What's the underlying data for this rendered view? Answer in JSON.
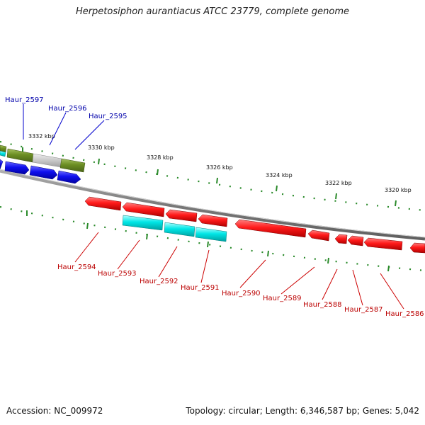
{
  "title": "Herpetosiphon aurantiacus ATCC 23779, complete genome",
  "accession": "Accession: NC_009972",
  "summary": "Topology: circular; Length: 6,346,587 bp; Genes: 5,042",
  "colors": {
    "forward_cds": "#0000ee",
    "reverse_cds": "#ee0000",
    "rna_gene": "#00dddd",
    "olive_feature": "#6b8e23",
    "grey_feature": "#c8c8c8",
    "backbone": "#888888",
    "tick": "#2a8a2a",
    "label_forward": "#0000aa",
    "label_reverse": "#bb0000"
  },
  "scale": {
    "labels": [
      "3332 kbp",
      "3330 kbp",
      "3328 kbp",
      "3326 kbp",
      "3324 kbp",
      "3322 kbp",
      "3320 kbp"
    ]
  },
  "genes_forward": [
    {
      "label": "Haur_2597"
    },
    {
      "label": "Haur_2596"
    },
    {
      "label": "Haur_2595"
    }
  ],
  "genes_reverse": [
    {
      "label": "Haur_2594"
    },
    {
      "label": "Haur_2593"
    },
    {
      "label": "Haur_2592"
    },
    {
      "label": "Haur_2591"
    },
    {
      "label": "Haur_2590"
    },
    {
      "label": "Haur_2589"
    },
    {
      "label": "Haur_2588"
    },
    {
      "label": "Haur_2587"
    },
    {
      "label": "Haur_2586"
    }
  ]
}
